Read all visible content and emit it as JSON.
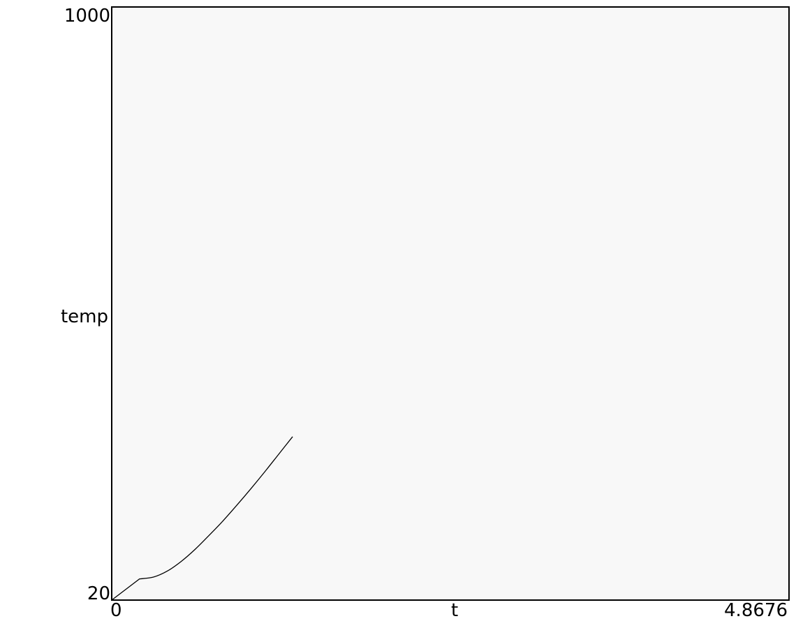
{
  "chart_data": {
    "type": "line",
    "title": "",
    "xlabel": "t",
    "ylabel": "temp",
    "xlim": [
      0,
      4.8676
    ],
    "ylim": [
      20,
      1000
    ],
    "x_tick_labels": [
      "0",
      "4.8676"
    ],
    "y_tick_labels": [
      "20",
      "1000"
    ],
    "grid": false,
    "legend": "none",
    "colors": {
      "plot_background": "#f8f8f8",
      "line": "#000000",
      "frame": "#000000"
    },
    "series": [
      {
        "x": [
          0,
          0.2,
          0.3,
          0.4,
          0.5,
          0.6,
          0.7,
          0.8,
          0.9,
          1.0,
          1.1,
          1.2,
          1.3
        ],
        "y": [
          20,
          55,
          58,
          68,
          84,
          104,
          127,
          151,
          177,
          204,
          232,
          261,
          290
        ]
      }
    ]
  }
}
